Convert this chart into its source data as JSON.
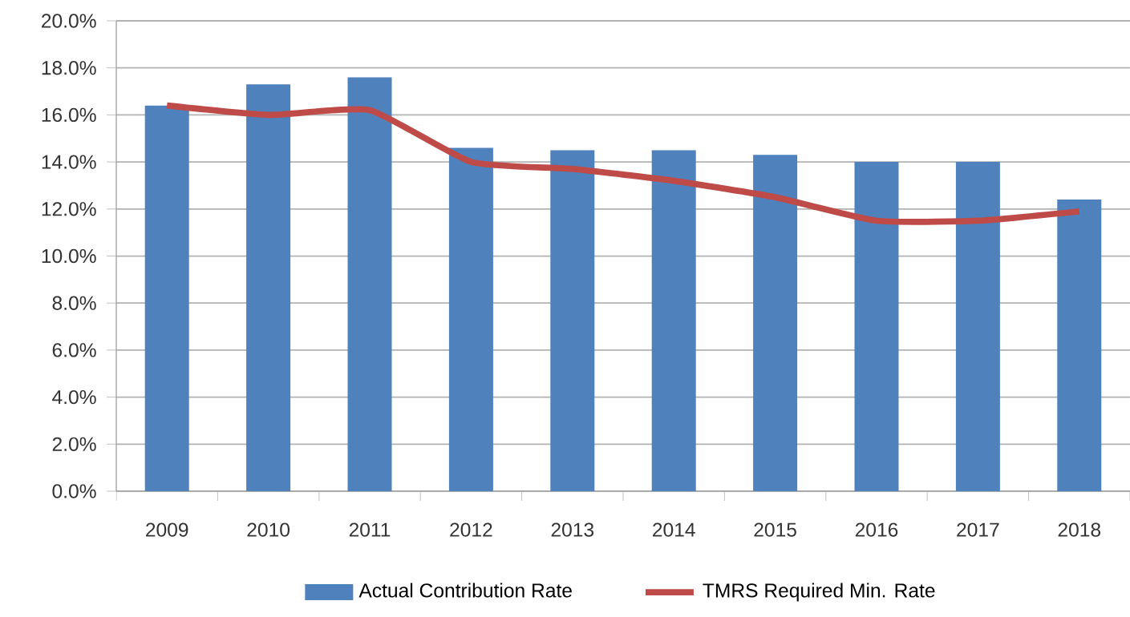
{
  "chart_data": {
    "type": "bar",
    "categories": [
      "2009",
      "2010",
      "2011",
      "2012",
      "2013",
      "2014",
      "2015",
      "2016",
      "2017",
      "2018"
    ],
    "series": [
      {
        "name": "Actual Contribution Rate",
        "color": "#4f81bd",
        "values": [
          16.4,
          17.3,
          17.6,
          14.6,
          14.5,
          14.5,
          14.3,
          14.0,
          14.0,
          12.4
        ]
      },
      {
        "name": "TMRS Required Min. Rate",
        "type": "line",
        "color": "#be4b48",
        "values": [
          16.4,
          16.0,
          16.2,
          14.0,
          13.7,
          13.2,
          12.5,
          11.5,
          11.5,
          11.9
        ]
      }
    ],
    "ylim": [
      0,
      20
    ],
    "yticks": [
      {
        "value": 0,
        "label": "0.0%"
      },
      {
        "value": 2,
        "label": "2.0%"
      },
      {
        "value": 4,
        "label": "4.0%"
      },
      {
        "value": 6,
        "label": "6.0%"
      },
      {
        "value": 8,
        "label": "8.0%"
      },
      {
        "value": 10,
        "label": "10.0%"
      },
      {
        "value": 12,
        "label": "12.0%"
      },
      {
        "value": 14,
        "label": "14.0%"
      },
      {
        "value": 16,
        "label": "16.0%"
      },
      {
        "value": 18,
        "label": "18.0%"
      },
      {
        "value": 20,
        "label": "20.0%"
      }
    ],
    "grid": "y",
    "legend": "bottom",
    "marker": "none"
  }
}
